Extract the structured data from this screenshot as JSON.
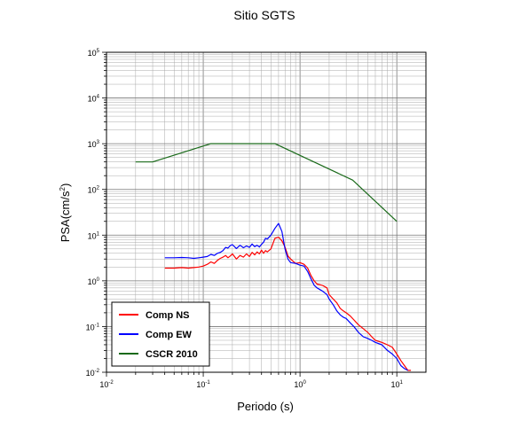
{
  "chart_data": {
    "type": "line",
    "title": "Sitio SGTS",
    "xlabel": "Periodo (s)",
    "ylabel_main": "PSA(cm/s",
    "ylabel_sup": "2",
    "ylabel_close": ")",
    "x_scale": "log",
    "y_scale": "log",
    "xlim": [
      0.01,
      20
    ],
    "ylim": [
      0.01,
      100000
    ],
    "grid": true,
    "legend_position": "bottom-left",
    "x_ticks": [
      {
        "base": "10",
        "exp": "-2",
        "value": 0.01
      },
      {
        "base": "10",
        "exp": "-1",
        "value": 0.1
      },
      {
        "base": "10",
        "exp": "0",
        "value": 1
      },
      {
        "base": "10",
        "exp": "1",
        "value": 10
      }
    ],
    "y_ticks": [
      {
        "base": "10",
        "exp": "-2",
        "value": 0.01
      },
      {
        "base": "10",
        "exp": "-1",
        "value": 0.1
      },
      {
        "base": "10",
        "exp": "0",
        "value": 1
      },
      {
        "base": "10",
        "exp": "1",
        "value": 10
      },
      {
        "base": "10",
        "exp": "2",
        "value": 100
      },
      {
        "base": "10",
        "exp": "3",
        "value": 1000
      },
      {
        "base": "10",
        "exp": "4",
        "value": 10000
      },
      {
        "base": "10",
        "exp": "5",
        "value": 100000
      }
    ],
    "series": [
      {
        "name": "Comp NS",
        "color": "#ff0000",
        "x": [
          0.04,
          0.05,
          0.06,
          0.07,
          0.08,
          0.09,
          0.1,
          0.11,
          0.12,
          0.13,
          0.14,
          0.15,
          0.16,
          0.17,
          0.18,
          0.19,
          0.2,
          0.22,
          0.24,
          0.26,
          0.28,
          0.3,
          0.32,
          0.34,
          0.36,
          0.38,
          0.4,
          0.42,
          0.44,
          0.46,
          0.5,
          0.55,
          0.6,
          0.65,
          0.7,
          0.75,
          0.8,
          0.9,
          1.0,
          1.1,
          1.2,
          1.3,
          1.4,
          1.5,
          1.7,
          1.9,
          2.0,
          2.2,
          2.4,
          2.6,
          2.8,
          3.0,
          3.3,
          3.6,
          4.0,
          4.5,
          5.0,
          5.5,
          6.0,
          7.0,
          8.0,
          9.0,
          10.0,
          11.0,
          12.0,
          13.0,
          14.0
        ],
        "y": [
          1.9,
          1.9,
          1.95,
          1.9,
          1.95,
          2.0,
          2.1,
          2.3,
          2.6,
          2.4,
          2.8,
          3.1,
          3.3,
          3.6,
          3.2,
          3.5,
          3.9,
          3.0,
          3.6,
          3.3,
          3.9,
          3.4,
          4.2,
          3.7,
          4.3,
          3.9,
          4.7,
          4.0,
          4.6,
          4.3,
          5.0,
          8.5,
          9.0,
          7.5,
          5.5,
          3.5,
          3.0,
          2.4,
          2.5,
          2.3,
          1.9,
          1.3,
          1.0,
          0.85,
          0.8,
          0.7,
          0.5,
          0.4,
          0.33,
          0.25,
          0.22,
          0.2,
          0.17,
          0.14,
          0.11,
          0.09,
          0.075,
          0.06,
          0.05,
          0.045,
          0.04,
          0.035,
          0.025,
          0.018,
          0.014,
          0.011,
          0.011
        ]
      },
      {
        "name": "Comp EW",
        "color": "#0000ff",
        "x": [
          0.04,
          0.05,
          0.06,
          0.07,
          0.08,
          0.09,
          0.1,
          0.11,
          0.12,
          0.13,
          0.14,
          0.15,
          0.16,
          0.17,
          0.18,
          0.19,
          0.2,
          0.22,
          0.24,
          0.26,
          0.28,
          0.3,
          0.32,
          0.34,
          0.36,
          0.38,
          0.4,
          0.42,
          0.44,
          0.46,
          0.5,
          0.55,
          0.6,
          0.65,
          0.7,
          0.75,
          0.8,
          0.9,
          1.0,
          1.1,
          1.2,
          1.3,
          1.4,
          1.5,
          1.7,
          1.9,
          2.0,
          2.2,
          2.4,
          2.6,
          2.8,
          3.0,
          3.3,
          3.6,
          4.0,
          4.5,
          5.0,
          5.5,
          6.0,
          7.0,
          8.0,
          9.0,
          10.0,
          11.0,
          12.0,
          13.0
        ],
        "y": [
          3.2,
          3.2,
          3.25,
          3.2,
          3.1,
          3.2,
          3.3,
          3.4,
          3.8,
          3.6,
          4.0,
          4.2,
          4.6,
          5.4,
          5.2,
          5.9,
          6.2,
          5.1,
          6.0,
          5.3,
          5.8,
          5.4,
          6.4,
          5.6,
          6.0,
          5.5,
          6.3,
          7.0,
          8.5,
          8.2,
          10.0,
          14.0,
          18.0,
          12.0,
          5.0,
          3.0,
          2.5,
          2.4,
          2.2,
          2.1,
          1.6,
          1.1,
          0.8,
          0.7,
          0.6,
          0.5,
          0.4,
          0.3,
          0.22,
          0.18,
          0.16,
          0.15,
          0.12,
          0.1,
          0.075,
          0.06,
          0.055,
          0.05,
          0.045,
          0.04,
          0.03,
          0.025,
          0.02,
          0.014,
          0.012,
          0.011
        ]
      },
      {
        "name": "CSCR 2010",
        "color": "#1a6a1a",
        "x": [
          0.02,
          0.03,
          0.12,
          0.55,
          3.5,
          10.0
        ],
        "y": [
          400,
          400,
          1000,
          1000,
          160,
          20
        ]
      }
    ]
  }
}
